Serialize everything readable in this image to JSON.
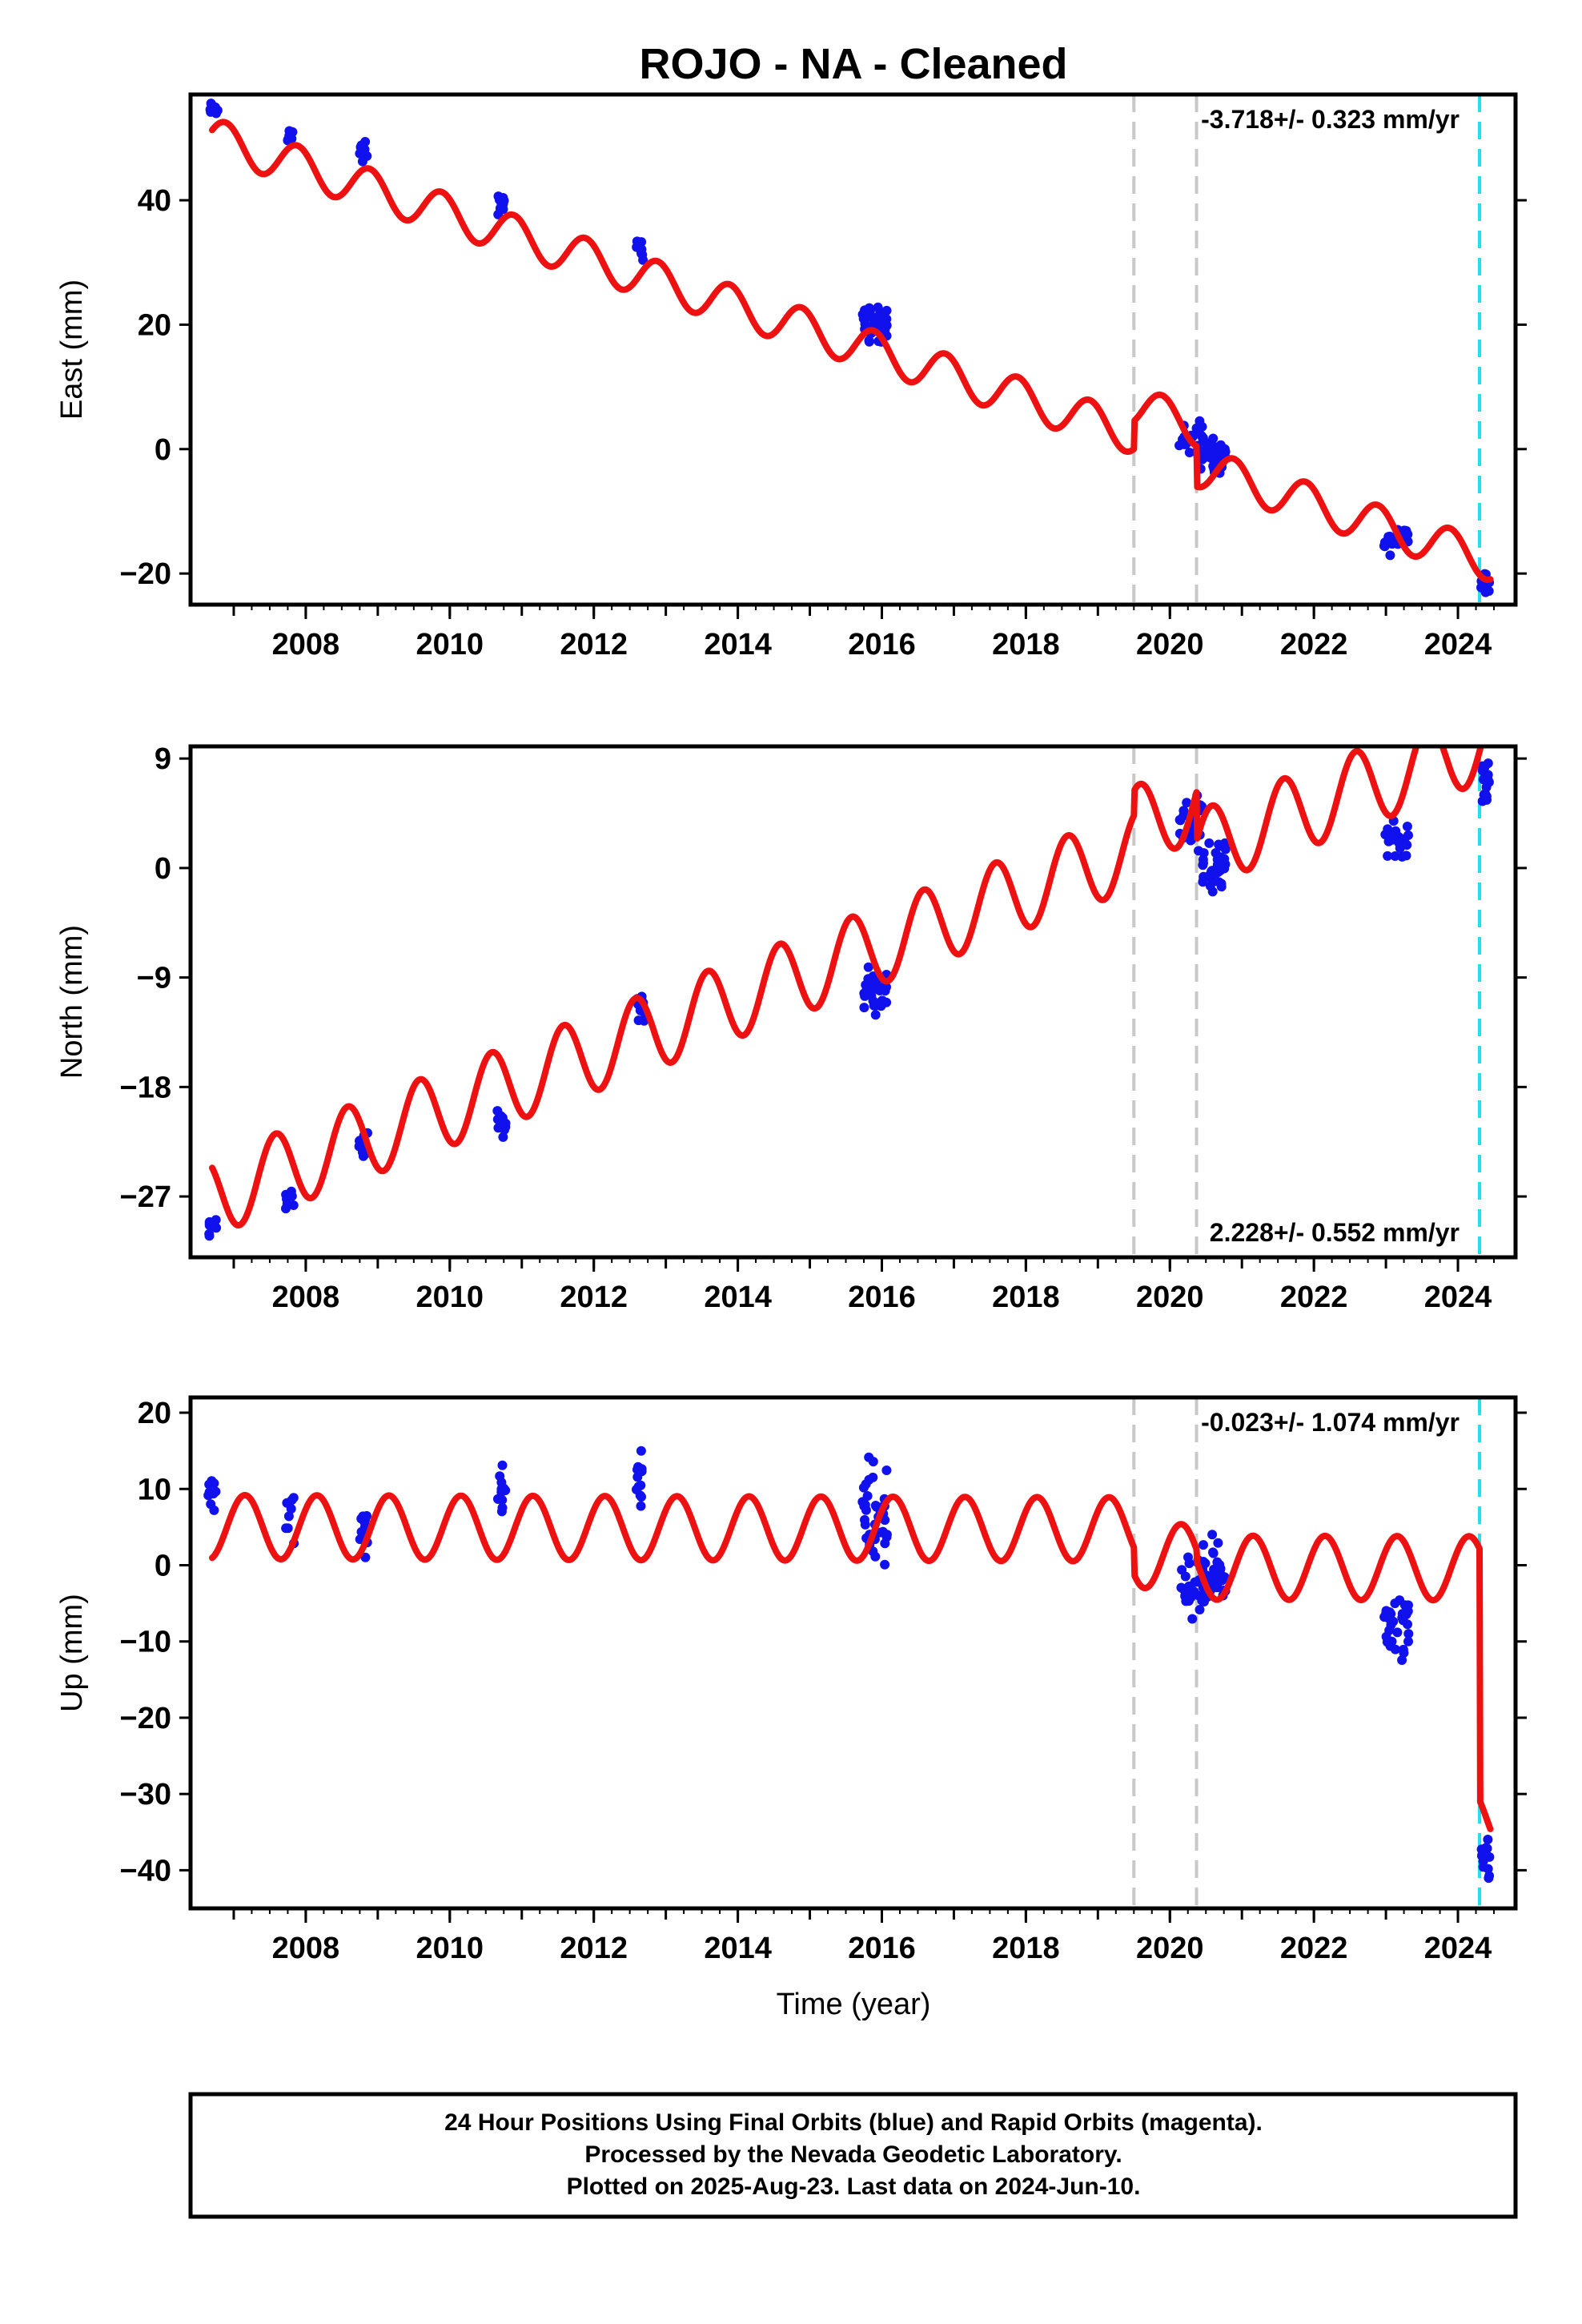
{
  "title": "ROJO  - NA - Cleaned",
  "x_axis_label": "Time (year)",
  "footer": {
    "lines": [
      "24 Hour Positions Using Final Orbits (blue) and Rapid Orbits (magenta).",
      "Processed by the Nevada Geodetic Laboratory.",
      "Plotted on 2025-Aug-23. Last data on 2024-Jun-10."
    ]
  },
  "colors": {
    "final_orbits": "#1111ee",
    "model": "#ee1111",
    "equipment_change": "#c8c8c8",
    "last_data": "#22e0ee"
  },
  "chart_data": [
    {
      "type": "scatter",
      "panel": "east",
      "ylabel": "East (mm)",
      "xlim": [
        2006.4,
        2024.8
      ],
      "ylim": [
        -25,
        57
      ],
      "x_ticks": [
        2008,
        2010,
        2012,
        2014,
        2016,
        2018,
        2020,
        2022,
        2024
      ],
      "y_ticks": [
        -20,
        0,
        20,
        40
      ],
      "y_tick_labels": [
        "−20",
        "0",
        "20",
        "40"
      ],
      "rate_label": "-3.718+/- 0.323 mm/yr",
      "rate_position": "top-right",
      "grid": false,
      "model": {
        "y0": 50,
        "t0": 2006.7,
        "rate": -3.718,
        "amplitude": 3.2,
        "phase": 2.3,
        "offsets": [
          {
            "t": 2019.5,
            "dy": 4.5
          },
          {
            "t": 2020.37,
            "dy": -6.5
          }
        ]
      },
      "clusters": [
        {
          "t": 2006.72,
          "center": 54.5,
          "spread": 1.0,
          "n": 10
        },
        {
          "t": 2007.78,
          "center": 50.5,
          "spread": 1.2,
          "n": 8
        },
        {
          "t": 2008.8,
          "center": 47.5,
          "spread": 1.6,
          "n": 12
        },
        {
          "t": 2010.72,
          "center": 39.5,
          "spread": 1.5,
          "n": 12
        },
        {
          "t": 2012.65,
          "center": 32,
          "spread": 1.8,
          "n": 12
        },
        {
          "t": 2015.9,
          "center": 20,
          "spread": 2.5,
          "n": 40
        },
        {
          "t": 2020.3,
          "center": 2,
          "spread": 2.5,
          "n": 25
        },
        {
          "t": 2020.6,
          "center": -1.5,
          "spread": 2.5,
          "n": 40
        },
        {
          "t": 2023.15,
          "center": -14.5,
          "spread": 2.0,
          "n": 30
        },
        {
          "t": 2024.38,
          "center": -21,
          "spread": 1.5,
          "n": 15
        }
      ],
      "equipment_changes": [
        2019.5,
        2020.37
      ],
      "last_data": 2024.3
    },
    {
      "type": "scatter",
      "panel": "north",
      "ylabel": "North (mm)",
      "xlim": [
        2006.4,
        2024.8
      ],
      "ylim": [
        -32,
        10
      ],
      "x_ticks": [
        2008,
        2010,
        2012,
        2014,
        2016,
        2018,
        2020,
        2022,
        2024
      ],
      "y_ticks": [
        -27,
        -18,
        -9,
        0,
        9
      ],
      "y_tick_labels": [
        "−27",
        "−18",
        "−9",
        "0",
        "9"
      ],
      "rate_label": "2.228+/- 0.552 mm/yr",
      "rate_position": "bottom-right",
      "grid": false,
      "model": {
        "y0": -27,
        "t0": 2006.7,
        "rate": 2.228,
        "amplitude": 3.2,
        "phase": 4.2,
        "offsets": [
          {
            "t": 2019.5,
            "dy": 2.0
          },
          {
            "t": 2020.37,
            "dy": -4.0
          }
        ]
      },
      "clusters": [
        {
          "t": 2006.7,
          "center": -29.5,
          "spread": 1.0,
          "n": 10
        },
        {
          "t": 2007.78,
          "center": -27,
          "spread": 0.9,
          "n": 8
        },
        {
          "t": 2008.8,
          "center": -23,
          "spread": 1.2,
          "n": 12
        },
        {
          "t": 2010.72,
          "center": -21,
          "spread": 1.2,
          "n": 12
        },
        {
          "t": 2012.65,
          "center": -11.5,
          "spread": 1.3,
          "n": 12
        },
        {
          "t": 2015.9,
          "center": -10,
          "spread": 1.5,
          "n": 40
        },
        {
          "t": 2020.3,
          "center": 4,
          "spread": 2.0,
          "n": 25
        },
        {
          "t": 2020.6,
          "center": 0,
          "spread": 2.0,
          "n": 40
        },
        {
          "t": 2023.15,
          "center": 2.5,
          "spread": 1.3,
          "n": 30
        },
        {
          "t": 2024.38,
          "center": 7,
          "spread": 1.3,
          "n": 15
        }
      ],
      "equipment_changes": [
        2019.5,
        2020.37
      ],
      "last_data": 2024.3
    },
    {
      "type": "scatter",
      "panel": "up",
      "ylabel": "Up (mm)",
      "xlim": [
        2006.4,
        2024.8
      ],
      "ylim": [
        -45,
        22
      ],
      "x_ticks": [
        2008,
        2010,
        2012,
        2014,
        2016,
        2018,
        2020,
        2022,
        2024
      ],
      "y_ticks": [
        -40,
        -30,
        -20,
        -10,
        0,
        10,
        20
      ],
      "y_tick_labels": [
        "−40",
        "−30",
        "−20",
        "−10",
        "0",
        "10",
        "20"
      ],
      "rate_label": "-0.023+/- 1.074 mm/yr",
      "rate_position": "top-right",
      "grid": false,
      "model": {
        "y0": 5,
        "t0": 2006.7,
        "rate": -0.023,
        "amplitude": 4.2,
        "phase": 0.6,
        "offsets": [
          {
            "t": 2019.5,
            "dy": -3.5
          },
          {
            "t": 2020.37,
            "dy": -1.5
          },
          {
            "t": 2024.3,
            "dy": -33
          }
        ]
      },
      "clusters": [
        {
          "t": 2006.7,
          "center": 10,
          "spread": 2.5,
          "n": 10
        },
        {
          "t": 2007.78,
          "center": 6,
          "spread": 4.5,
          "n": 8
        },
        {
          "t": 2008.8,
          "center": 5,
          "spread": 3.5,
          "n": 12
        },
        {
          "t": 2010.72,
          "center": 10,
          "spread": 3.0,
          "n": 12
        },
        {
          "t": 2012.65,
          "center": 10,
          "spread": 4.0,
          "n": 12
        },
        {
          "t": 2015.9,
          "center": 7,
          "spread": 6.0,
          "n": 40
        },
        {
          "t": 2020.3,
          "center": -3,
          "spread": 3.5,
          "n": 25
        },
        {
          "t": 2020.6,
          "center": -1.5,
          "spread": 4.0,
          "n": 40
        },
        {
          "t": 2023.15,
          "center": -8.5,
          "spread": 4.0,
          "n": 30
        },
        {
          "t": 2024.38,
          "center": -39,
          "spread": 2.5,
          "n": 15
        }
      ],
      "equipment_changes": [
        2019.5,
        2020.37
      ],
      "last_data": 2024.3
    }
  ]
}
